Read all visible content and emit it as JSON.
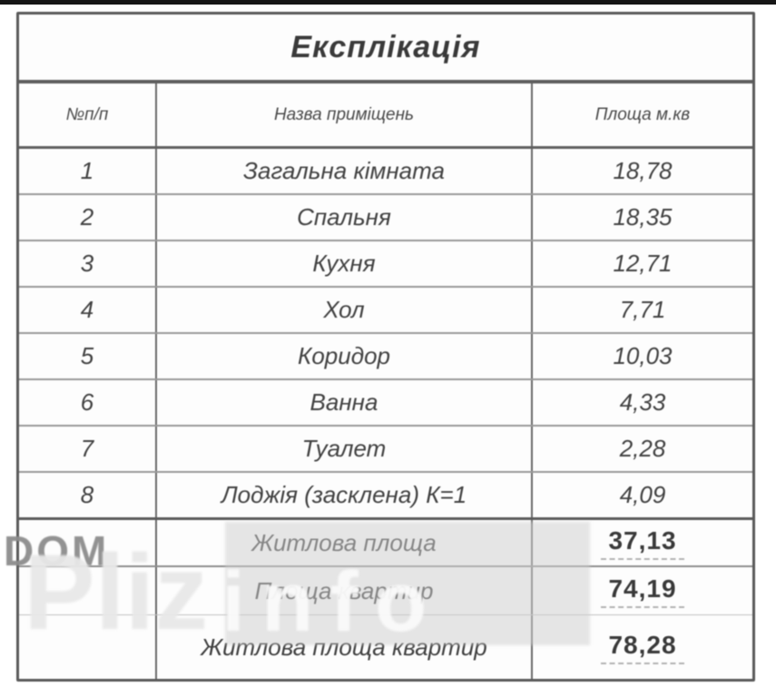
{
  "table": {
    "title": "Експлікація",
    "headers": {
      "num": "№п/п",
      "name": "Назва приміщень",
      "area": "Площа м.кв"
    },
    "rows": [
      {
        "num": "1",
        "name": "Загальна кімната",
        "area": "18,78"
      },
      {
        "num": "2",
        "name": "Спальня",
        "area": "18,35"
      },
      {
        "num": "3",
        "name": "Кухня",
        "area": "12,71"
      },
      {
        "num": "4",
        "name": "Хол",
        "area": "7,71"
      },
      {
        "num": "5",
        "name": "Коридор",
        "area": "10,03"
      },
      {
        "num": "6",
        "name": "Ванна",
        "area": "4,33"
      },
      {
        "num": "7",
        "name": "Туалет",
        "area": "2,28"
      },
      {
        "num": "8",
        "name": "Лоджія (засклена) К=1",
        "area": "4,09"
      }
    ],
    "summary": [
      {
        "label": "Житлова площа",
        "value": "37,13"
      },
      {
        "label": "Площа квартир",
        "value": "74,19"
      },
      {
        "label": "Житлова площа квартир",
        "value": "78,28"
      }
    ]
  },
  "watermark": {
    "dom": "DOM",
    "pliz": "Pliz",
    "info": "info"
  },
  "colors": {
    "border_dark": "#5a5a5a",
    "border_light": "#999999",
    "text": "#3c3c3c",
    "watermark_gray": "#8c8c8c",
    "top_strip": "#161616"
  }
}
